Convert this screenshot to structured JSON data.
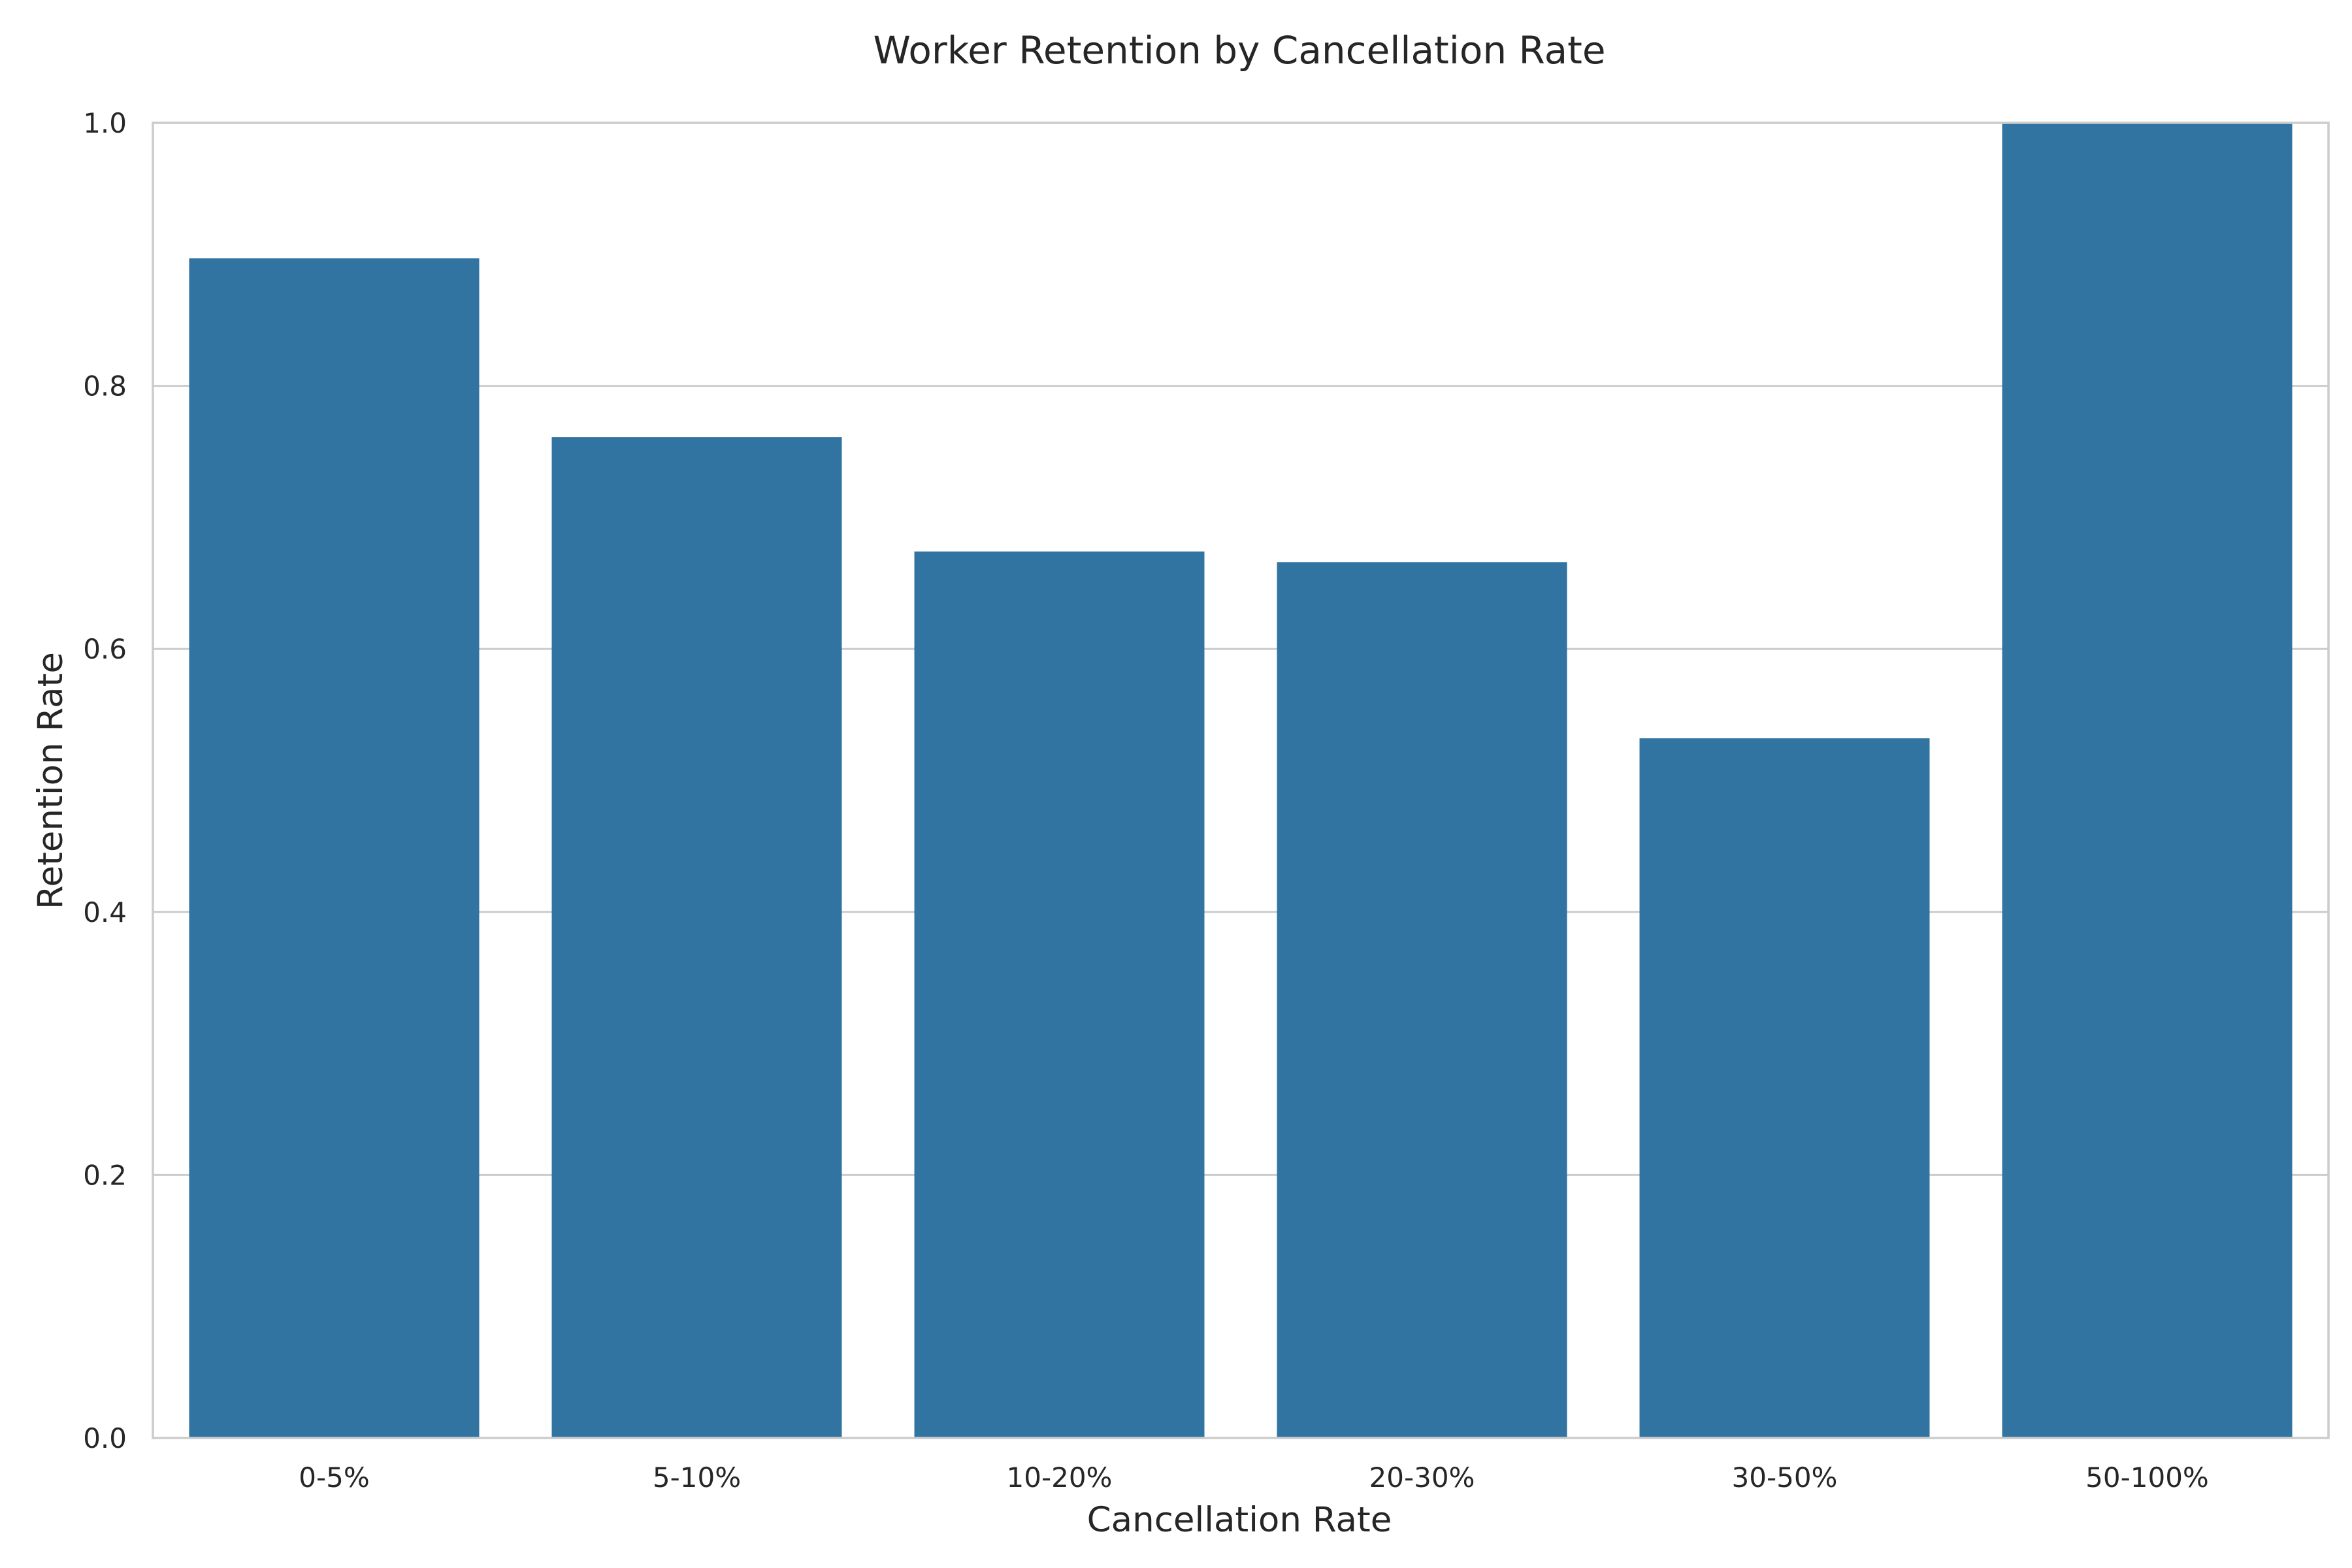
{
  "chart_data": {
    "type": "bar",
    "title": "Worker Retention by Cancellation Rate",
    "xlabel": "Cancellation Rate",
    "ylabel": "Retention Rate",
    "categories": [
      "0-5%",
      "5-10%",
      "10-20%",
      "20-30%",
      "30-50%",
      "50-100%"
    ],
    "values": [
      0.897,
      0.761,
      0.674,
      0.666,
      0.532,
      1.0
    ],
    "ylim": [
      0,
      1.0
    ],
    "yticks": [
      "0.0",
      "0.2",
      "0.4",
      "0.6",
      "0.8",
      "1.0"
    ],
    "grid": "horizontal",
    "legend": "none",
    "colors": {
      "bar": "#3274a1",
      "grid": "#cccccc",
      "frame": "#cccccc",
      "text": "#262626",
      "background": "#ffffff"
    }
  }
}
